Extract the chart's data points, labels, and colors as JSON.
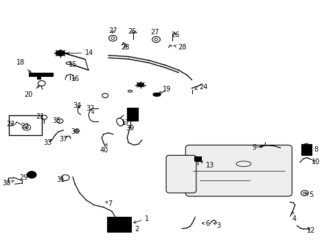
{
  "bg_color": "#ffffff",
  "line_color": "#000000",
  "fig_width": 4.89,
  "fig_height": 3.6,
  "dpi": 100,
  "font_size": 7
}
